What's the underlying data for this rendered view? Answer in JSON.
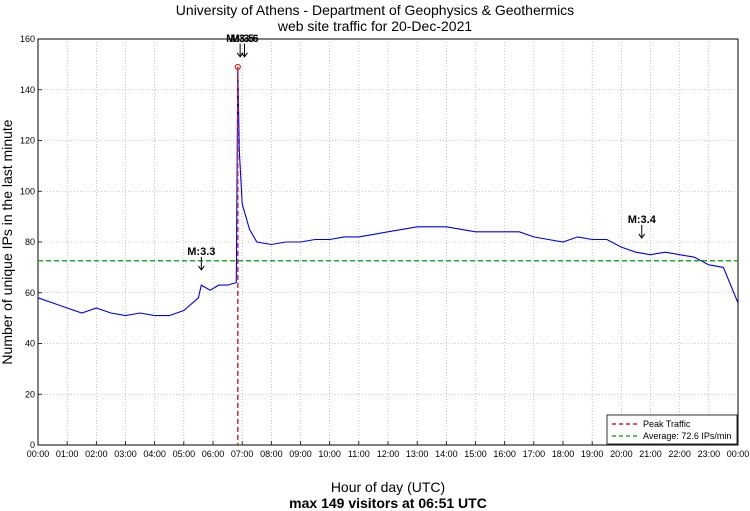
{
  "chart_data": {
    "type": "line",
    "title": "University of Athens - Department of Geophysics & Geothermics",
    "subtitle": "web site traffic for 20-Dec-2021",
    "xlabel": "Hour of day (UTC)",
    "xlabel_sub": "max 149 visitors at 06:51 UTC",
    "ylabel": "Number of unique IPs in the last minute",
    "xlim": [
      0,
      24
    ],
    "ylim": [
      0,
      160
    ],
    "x_ticks": [
      "00:00",
      "01:00",
      "02:00",
      "03:00",
      "04:00",
      "05:00",
      "06:00",
      "07:00",
      "08:00",
      "09:00",
      "10:00",
      "11:00",
      "12:00",
      "13:00",
      "14:00",
      "15:00",
      "16:00",
      "17:00",
      "18:00",
      "19:00",
      "20:00",
      "21:00",
      "22:00",
      "23:00",
      "00:00"
    ],
    "y_ticks": [
      0,
      20,
      40,
      60,
      80,
      100,
      120,
      140,
      160
    ],
    "grid": true,
    "legend_position": "bottom-right",
    "colors": {
      "traffic": "#0000ee",
      "peak": "#dd2222",
      "average": "#22aa22"
    },
    "series": [
      {
        "x": [
          0.0,
          0.5,
          1.0,
          1.5,
          2.0,
          2.5,
          3.0,
          3.5,
          4.0,
          4.5,
          5.0,
          5.5,
          5.6,
          5.9,
          6.2,
          6.5,
          6.8,
          6.85,
          6.9,
          7.0,
          7.25,
          7.5,
          8.0,
          8.5,
          9.0,
          9.5,
          10.0,
          10.5,
          11.0,
          11.5,
          12.0,
          12.5,
          13.0,
          13.5,
          14.0,
          14.5,
          15.0,
          15.5,
          16.0,
          16.5,
          17.0,
          17.5,
          18.0,
          18.5,
          19.0,
          19.5,
          20.0,
          20.5,
          21.0,
          21.5,
          22.0,
          22.5,
          23.0,
          23.5,
          24.0
        ],
        "y": [
          58,
          56,
          54,
          52,
          54,
          52,
          51,
          52,
          51,
          51,
          53,
          58,
          63,
          61,
          63,
          63,
          64,
          149,
          116,
          95,
          85,
          80,
          79,
          80,
          80,
          81,
          81,
          82,
          82,
          83,
          84,
          85,
          86,
          86,
          86,
          85,
          84,
          84,
          84,
          84,
          82,
          81,
          80,
          82,
          81,
          81,
          78,
          76,
          75,
          76,
          75,
          74,
          71,
          70,
          56
        ]
      }
    ],
    "peak": {
      "label": "Peak Traffic",
      "x": 6.85,
      "y": 149
    },
    "average": {
      "label": "Average: 72.6 IPs/min",
      "value": 72.6
    },
    "annotations": [
      {
        "text": "M:3.3",
        "x": 5.6
      },
      {
        "text": "M:3.5",
        "x": 6.93
      },
      {
        "text": "M:3.6",
        "x": 7.08
      },
      {
        "text": "M:3.4",
        "x": 20.7
      }
    ]
  }
}
